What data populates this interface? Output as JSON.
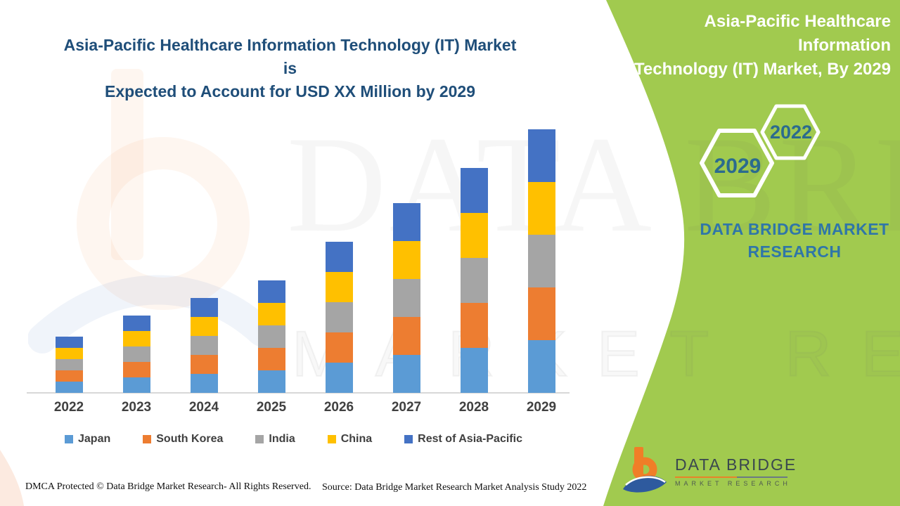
{
  "page": {
    "left_title_line1": "Asia-Pacific Healthcare Information Technology (IT) Market is",
    "left_title_line2": "Expected to Account for USD XX Million by 2029",
    "banner": {
      "title_line1": "Asia-Pacific Healthcare Information",
      "title_line2": "Technology (IT) Market, By 2029",
      "hexagon_2029": "2029",
      "hexagon_2022": "2022",
      "brand_line1": "DATA BRIDGE MARKET",
      "brand_line2": "RESEARCH",
      "green_color": "#A1CA4F"
    },
    "watermark": {
      "line1": "DATA BRIDGE",
      "line2": "MARKET RESEARCH"
    },
    "footer": {
      "dmca": "DMCA Protected © Data Bridge Market Research- All Rights Reserved.",
      "source": "Source: Data Bridge Market Research Market Analysis Study 2022",
      "logo_name": "DATA BRIDGE",
      "logo_sub": "MARKET RESEARCH",
      "logo_orange": "#F07E27",
      "logo_blue": "#2E5A9E"
    }
  },
  "chart_data": {
    "type": "bar",
    "stacked": true,
    "title": "Asia-Pacific Healthcare Information Technology (IT) Market is Expected to Account for USD XX Million by 2029",
    "xlabel": "",
    "ylabel": "",
    "value_axis_visible": false,
    "units": "relative height (no numeric axis shown; values masked as USD XX Million)",
    "grid": false,
    "legend_position": "bottom",
    "categories": [
      "2022",
      "2023",
      "2024",
      "2025",
      "2026",
      "2027",
      "2028",
      "2029"
    ],
    "series": [
      {
        "name": "Japan",
        "color": "#5B9BD5",
        "values": [
          16,
          22,
          27,
          32,
          43,
          54,
          64,
          75
        ]
      },
      {
        "name": "South Korea",
        "color": "#ED7D31",
        "values": [
          16,
          22,
          27,
          32,
          43,
          54,
          64,
          75
        ]
      },
      {
        "name": "India",
        "color": "#A5A5A5",
        "values": [
          16,
          22,
          27,
          32,
          43,
          54,
          64,
          75
        ]
      },
      {
        "name": "China",
        "color": "#FFC000",
        "values": [
          16,
          22,
          27,
          32,
          43,
          54,
          64,
          75
        ]
      },
      {
        "name": "Rest of Asia-Pacific",
        "color": "#4472C4",
        "values": [
          16,
          22,
          27,
          32,
          43,
          54,
          64,
          75
        ]
      }
    ],
    "stacked_totals_relative": [
      80,
      110,
      135,
      160,
      215,
      270,
      320,
      375
    ]
  }
}
